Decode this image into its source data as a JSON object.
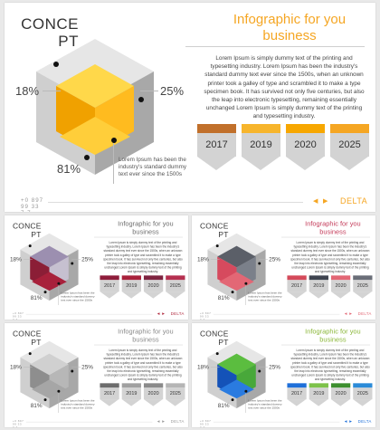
{
  "slide": {
    "concept_label": "CONCE PT",
    "title": "Infographic for you business",
    "body": "Lorem Ipsum is simply dummy text of the printing and typesetting industry. Lorem Ipsum has been the industry's standard dummy text ever since the 1500s, when an unknown printer took a galley of type and scrambled it to make a type specimen book. It has survived not only five centuries, but also the leap into electronic typesetting, remaining essentially unchanged Lorem Ipsum is simply dummy text of the printing and typesetting industry.",
    "side_text": "Lorem Ipsum has been the industry's standard dummy text ever since the 1500s",
    "pct_left": "18%",
    "pct_right": "25%",
    "pct_bottom": "81%",
    "years": [
      "2017",
      "2019",
      "2020",
      "2025"
    ],
    "phone": "+0 897 99 33 7 7",
    "brand": "DELTA",
    "nav_prev_icon": "◀",
    "nav_next_icon": "▶"
  },
  "themes": [
    {
      "name": "orange",
      "accent": "#F5A623",
      "title_color": "#F5A623",
      "cube": {
        "top": "#e6e6e6",
        "left": "#cfcfcf",
        "right": "#a8a8a8",
        "in_back": "#ffd84a",
        "in_left": "#f0a100",
        "in_right": "#ffbb1f",
        "in_floor": "#ffce3a"
      },
      "bars": [
        "#c1702b",
        "#f7b52c",
        "#f7a700",
        "#f5a623"
      ]
    },
    {
      "name": "crimson",
      "accent": "#b0283d",
      "title_color": "#6e6e6e",
      "cube": {
        "top": "#e6e6e6",
        "left": "#cfcfcf",
        "right": "#a8a8a8",
        "in_back": "#9c8fb0",
        "in_left": "#8b1e36",
        "in_right": "#c6c0d0",
        "in_floor": "#a8213b"
      },
      "bars": [
        "#8e1d3b",
        "#a8213b",
        "#7e2440",
        "#b53050"
      ]
    },
    {
      "name": "coral",
      "accent": "#e36775",
      "title_color": "#c43c5a",
      "cube": {
        "top": "#e6e6e6",
        "left": "#cfcfcf",
        "right": "#a8a8a8",
        "in_back": "#5b5f68",
        "in_left": "#d64a5e",
        "in_right": "#7b808a",
        "in_floor": "#e36775"
      },
      "bars": [
        "#d44a5a",
        "#3f4450",
        "#e36775",
        "#6a6e78"
      ]
    },
    {
      "name": "gray",
      "accent": "#9a9a9a",
      "title_color": "#8a8a8a",
      "cube": {
        "top": "#e6e6e6",
        "left": "#cfcfcf",
        "right": "#a8a8a8",
        "in_back": "#d0d0d0",
        "in_left": "#8e8e8e",
        "in_right": "#b7b7b7",
        "in_floor": "#a6a6a6"
      },
      "bars": [
        "#6d6d6d",
        "#a0a0a0",
        "#8a8a8a",
        "#b5b5b5"
      ]
    },
    {
      "name": "blue-green",
      "accent": "#1e6fd9",
      "title_color": "#8bb73a",
      "cube": {
        "top": "#e6e6e6",
        "left": "#cfcfcf",
        "right": "#a8a8a8",
        "in_back": "#5bbd3f",
        "in_left": "#1452b8",
        "in_right": "#48a83a",
        "in_floor": "#2a7be0"
      },
      "bars": [
        "#1e6fd9",
        "#7dc24a",
        "#3d8f2f",
        "#2b8bd8"
      ]
    }
  ]
}
